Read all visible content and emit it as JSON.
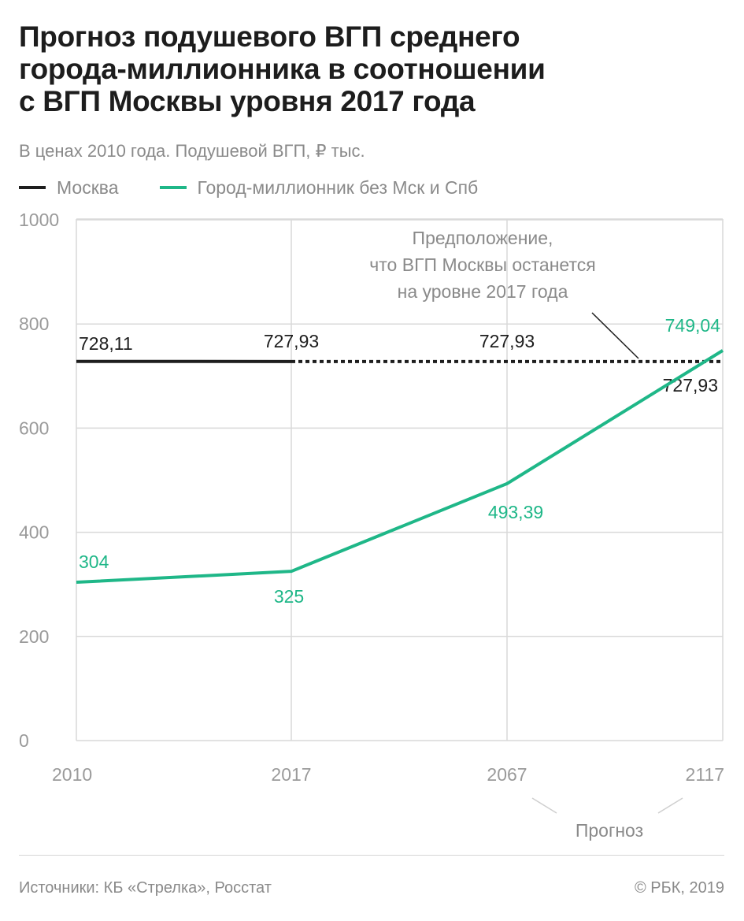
{
  "title": {
    "line1": "Прогноз подушевого ВГП среднего",
    "line2": "города-миллионника в соотношении",
    "line3": "с ВГП Москвы уровня 2017 года"
  },
  "subtitle": "В ценах 2010 года. Подушевой ВГП, ₽ тыс.",
  "legend": [
    {
      "label": "Москва",
      "color": "#1e1e1e"
    },
    {
      "label": "Город-миллионник без Мск и Спб",
      "color": "#1fb788"
    }
  ],
  "annotation": {
    "lines": [
      "Предположение,",
      "что ВГП Москвы останется",
      "на уровне 2017 года"
    ]
  },
  "forecast_label": "Прогноз",
  "footer": {
    "source": "Источники: КБ «Стрелка», Росстат",
    "copyright": "© РБК, 2019"
  },
  "chart_data": {
    "type": "line",
    "x": [
      "2010",
      "2017",
      "2067",
      "2117"
    ],
    "ylim": [
      0,
      1000
    ],
    "yticks": [
      "0",
      "200",
      "400",
      "600",
      "800",
      "1000"
    ],
    "grid": true,
    "legend_placement": "top-left",
    "series": [
      {
        "name": "Москва",
        "color": "#1e1e1e",
        "values": [
          728.11,
          727.93,
          727.93,
          727.93
        ],
        "labels": [
          "728,11",
          "727,93",
          "727,93",
          "727,93"
        ],
        "style": [
          "solid",
          "dotted",
          "dotted"
        ]
      },
      {
        "name": "Город-миллионник без Мск и Спб",
        "color": "#1fb788",
        "values": [
          304,
          325,
          493.39,
          749.04
        ],
        "labels": [
          "304",
          "325",
          "493,39",
          "749,04"
        ]
      }
    ]
  }
}
